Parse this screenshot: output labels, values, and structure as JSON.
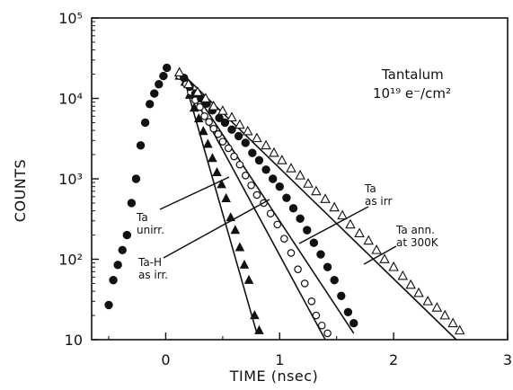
{
  "chart_data": {
    "type": "scatter",
    "title": "Tantalum",
    "subtitle": "10¹⁹ e⁻/cm²",
    "xlabel": "TIME  (nsec)",
    "ylabel": "COUNTS",
    "xlim": [
      -0.65,
      3.0
    ],
    "ylim": [
      10,
      100000
    ],
    "yscale": "log",
    "x_ticks": [
      0,
      1,
      2,
      3
    ],
    "x_tick_labels": [
      "0",
      "1",
      "2",
      "3"
    ],
    "y_ticks": [
      10,
      100,
      1000,
      10000,
      100000
    ],
    "y_tick_labels": [
      "10",
      "10²",
      "10³",
      "10⁴",
      "10⁵"
    ],
    "series": [
      {
        "name": "Ta unirr.",
        "marker": "filled-triangle",
        "x": [
          0.12,
          0.17,
          0.21,
          0.25,
          0.29,
          0.33,
          0.37,
          0.41,
          0.45,
          0.49,
          0.53,
          0.57,
          0.61,
          0.65,
          0.69,
          0.73,
          0.78,
          0.82
        ],
        "y": [
          19000,
          16000,
          11000,
          7600,
          5600,
          3900,
          2700,
          1800,
          1200,
          850,
          570,
          330,
          230,
          140,
          85,
          55,
          20,
          13
        ]
      },
      {
        "name": "Ta-H as irr.",
        "marker": "open-circle",
        "x": [
          0.12,
          0.18,
          0.22,
          0.26,
          0.3,
          0.34,
          0.38,
          0.42,
          0.46,
          0.5,
          0.55,
          0.6,
          0.65,
          0.7,
          0.75,
          0.8,
          0.86,
          0.92,
          0.98,
          1.04,
          1.1,
          1.16,
          1.22,
          1.28,
          1.32,
          1.37,
          1.42
        ],
        "y": [
          19000,
          15000,
          12000,
          9500,
          7800,
          6000,
          5100,
          4200,
          3600,
          2900,
          2400,
          1900,
          1500,
          1100,
          830,
          630,
          500,
          370,
          270,
          180,
          120,
          75,
          50,
          30,
          20,
          15,
          12
        ]
      },
      {
        "name": "Ta as irr.",
        "marker": "filled-circle",
        "x": [
          -0.5,
          -0.46,
          -0.42,
          -0.38,
          -0.34,
          -0.3,
          -0.26,
          -0.22,
          -0.18,
          -0.14,
          -0.1,
          -0.06,
          -0.02,
          0.01,
          0.16,
          0.21,
          0.26,
          0.31,
          0.36,
          0.41,
          0.47,
          0.52,
          0.58,
          0.64,
          0.7,
          0.76,
          0.82,
          0.88,
          0.94,
          1.0,
          1.06,
          1.12,
          1.18,
          1.24,
          1.3,
          1.36,
          1.42,
          1.48,
          1.54,
          1.6,
          1.65
        ],
        "y": [
          27,
          55,
          85,
          130,
          200,
          500,
          1000,
          2600,
          5000,
          8500,
          11500,
          15000,
          19000,
          24000,
          18000,
          14000,
          11500,
          10000,
          8600,
          7100,
          5700,
          5000,
          4100,
          3400,
          2800,
          2100,
          1700,
          1300,
          1000,
          800,
          580,
          430,
          320,
          230,
          160,
          115,
          80,
          55,
          35,
          22,
          16
        ]
      },
      {
        "name": "Ta ann. at 300K",
        "marker": "open-triangle",
        "x": [
          0.12,
          0.2,
          0.28,
          0.35,
          0.42,
          0.5,
          0.58,
          0.65,
          0.72,
          0.8,
          0.88,
          0.95,
          1.02,
          1.1,
          1.18,
          1.25,
          1.32,
          1.4,
          1.48,
          1.55,
          1.62,
          1.7,
          1.78,
          1.85,
          1.92,
          2.0,
          2.08,
          2.15,
          2.22,
          2.3,
          2.38,
          2.45,
          2.52,
          2.58
        ],
        "y": [
          21000,
          15000,
          12000,
          10000,
          8000,
          7000,
          5800,
          4700,
          3900,
          3200,
          2600,
          2100,
          1700,
          1350,
          1100,
          870,
          700,
          560,
          440,
          350,
          270,
          210,
          170,
          130,
          100,
          80,
          62,
          48,
          38,
          30,
          25,
          20,
          16,
          13
        ]
      }
    ],
    "fit_lines": [
      {
        "series": "Ta unirr.",
        "x": [
          0.15,
          0.8
        ],
        "y": [
          20000,
          12
        ]
      },
      {
        "series": "Ta-H as irr.",
        "x": [
          0.15,
          1.4
        ],
        "y": [
          19000,
          10
        ]
      },
      {
        "series": "Ta as irr.",
        "x": [
          0.15,
          1.65
        ],
        "y": [
          20000,
          12
        ]
      },
      {
        "series": "Ta ann. at 300K",
        "x": [
          0.15,
          2.55
        ],
        "y": [
          20000,
          10
        ]
      }
    ],
    "annotations": [
      {
        "lines": [
          "Ta",
          "unirr."
        ],
        "target_series": "Ta unirr."
      },
      {
        "lines": [
          "Ta-H",
          "as irr."
        ],
        "target_series": "Ta-H as irr."
      },
      {
        "lines": [
          "Ta",
          "as irr"
        ],
        "target_series": "Ta as irr."
      },
      {
        "lines": [
          "Ta ann.",
          "at 300K"
        ],
        "target_series": "Ta ann. at 300K"
      }
    ]
  }
}
